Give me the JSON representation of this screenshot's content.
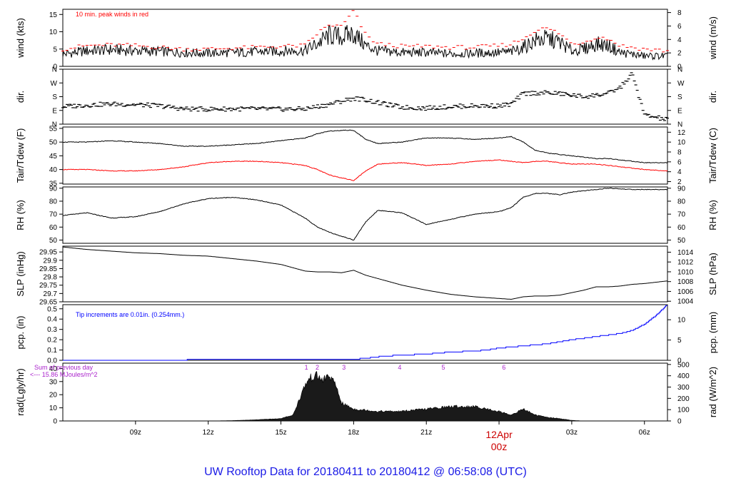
{
  "title": "UW Rooftop Data for 20180411  to  20180412 @ 06:58:08  (UTC)",
  "colors": {
    "black": "#000000",
    "red": "#ff0000",
    "blue": "#0000ff",
    "purple": "#aa22cc",
    "darkred": "#cc0000",
    "title": "#1a1ae6"
  },
  "time_axis": {
    "unit": "hours since 2018-04-11 06:00 UTC",
    "range": [
      0,
      24.95
    ],
    "ticks": [
      {
        "t": 3,
        "label": "09z"
      },
      {
        "t": 6,
        "label": "12z"
      },
      {
        "t": 9,
        "label": "15z"
      },
      {
        "t": 12,
        "label": "18z"
      },
      {
        "t": 15,
        "label": "21z"
      },
      {
        "t": 18,
        "label": "12Apr"
      },
      {
        "t": 21,
        "label": "03z"
      },
      {
        "t": 24,
        "label": "06z"
      }
    ],
    "midnight_label": "00z"
  },
  "chart_data": [
    {
      "type": "line",
      "panel": "wind",
      "ylabel_left": "wind (kts)",
      "ylabel_right": "wind (m/s)",
      "ylim": [
        0,
        16.5
      ],
      "yticks_left": [
        0,
        5,
        10,
        15
      ],
      "yticks_right": [
        {
          "v": 0,
          "label": "0"
        },
        {
          "v": 3.888,
          "label": "2"
        },
        {
          "v": 7.776,
          "label": "4"
        },
        {
          "v": 11.664,
          "label": "6"
        },
        {
          "v": 15.552,
          "label": "8"
        }
      ],
      "annotation": "10 min. peak winds in red",
      "series": [
        {
          "role": "mean",
          "color": "#000000",
          "x": [
            0,
            1,
            2,
            3,
            4,
            5,
            6,
            7,
            8,
            9,
            10,
            10.5,
            11,
            11.5,
            12,
            12.5,
            13,
            14,
            15,
            16,
            17,
            18,
            18.5,
            19,
            19.5,
            20,
            20.5,
            21,
            21.5,
            22,
            22.5,
            23,
            23.5,
            24,
            24.9
          ],
          "y": [
            3.5,
            4.5,
            4.8,
            4.5,
            4.3,
            4,
            3.8,
            4,
            4.2,
            4.4,
            4.6,
            6.5,
            9,
            8.5,
            9.5,
            6,
            4.5,
            4,
            4,
            3.6,
            3.8,
            4,
            4.2,
            5.5,
            7.5,
            8,
            7,
            4.5,
            5,
            6.5,
            6,
            4,
            3.5,
            3,
            3
          ]
        },
        {
          "role": "peak",
          "color": "#ff0000",
          "x": [
            0,
            1,
            2,
            3,
            4,
            5,
            6,
            7,
            8,
            9,
            10,
            10.5,
            11,
            11.5,
            12,
            12.5,
            13,
            14,
            15,
            16,
            17,
            18,
            18.5,
            19,
            19.5,
            20,
            20.5,
            21,
            21.5,
            22,
            22.5,
            23,
            23.5,
            24,
            24.9
          ],
          "y": [
            5,
            6,
            6.2,
            6,
            5.5,
            5,
            5,
            5.3,
            5.5,
            5.8,
            6,
            9.5,
            12,
            11.5,
            16,
            9,
            6.5,
            5.8,
            5.8,
            5.5,
            5.5,
            6,
            6.5,
            8,
            10.5,
            11,
            9.5,
            6.5,
            7,
            8.5,
            8,
            6,
            5.5,
            5,
            4.5
          ]
        }
      ]
    },
    {
      "type": "scatter",
      "panel": "dir",
      "ylabel_left": "dir.",
      "ylabel_right": "dir.",
      "ylim": [
        0,
        360
      ],
      "yticks_left": [
        {
          "v": 0,
          "label": "N"
        },
        {
          "v": 90,
          "label": "E"
        },
        {
          "v": 180,
          "label": "S"
        },
        {
          "v": 270,
          "label": "W"
        },
        {
          "v": 360,
          "label": "N"
        }
      ],
      "yticks_right": [
        {
          "v": 0,
          "label": "N"
        },
        {
          "v": 90,
          "label": "E"
        },
        {
          "v": 180,
          "label": "S"
        },
        {
          "v": 270,
          "label": "W"
        },
        {
          "v": 360,
          "label": "N"
        }
      ],
      "series": [
        {
          "color": "#000000",
          "x": [
            0,
            1,
            2,
            3,
            4,
            5,
            6,
            7,
            8,
            9,
            10,
            10.5,
            11,
            11.5,
            12,
            12.5,
            13,
            14,
            15,
            16,
            17,
            18,
            18.5,
            19,
            19.5,
            20,
            20.5,
            21,
            21.5,
            22,
            22.5,
            23,
            23.5,
            24,
            24.9
          ],
          "y": [
            115,
            125,
            132,
            128,
            120,
            100,
            98,
            100,
            100,
            98,
            100,
            115,
            130,
            150,
            170,
            160,
            140,
            110,
            105,
            115,
            120,
            120,
            130,
            200,
            205,
            205,
            200,
            190,
            180,
            190,
            200,
            240,
            330,
            60,
            30
          ]
        }
      ]
    },
    {
      "type": "line",
      "panel": "temperature",
      "ylabel_left": "Tair/Tdew (F)",
      "ylabel_right": "Tair/Tdew (C)",
      "ylim": [
        34.7,
        55.5
      ],
      "yticks_left": [
        35,
        40,
        45,
        50,
        55
      ],
      "yticks_right": [
        {
          "v": 35.6,
          "label": "2"
        },
        {
          "v": 39.2,
          "label": "4"
        },
        {
          "v": 42.8,
          "label": "6"
        },
        {
          "v": 46.4,
          "label": "8"
        },
        {
          "v": 50,
          "label": "10"
        },
        {
          "v": 53.6,
          "label": "12"
        }
      ],
      "series": [
        {
          "role": "Tair",
          "color": "#000000",
          "x": [
            0,
            1,
            2,
            3,
            4,
            5,
            6,
            7,
            8,
            9,
            10,
            10.5,
            11,
            11.5,
            12,
            12.5,
            13,
            14,
            15,
            16,
            17,
            18,
            18.5,
            19,
            19.5,
            20,
            20.5,
            21,
            21.5,
            22,
            22.5,
            23,
            23.5,
            24,
            24.9
          ],
          "y": [
            50,
            50,
            50.5,
            50,
            49.5,
            48.5,
            48.5,
            49,
            49.5,
            50.5,
            51.5,
            53,
            54,
            54.3,
            54.3,
            51,
            49.5,
            50,
            51.5,
            51.5,
            51,
            51.5,
            52,
            50,
            47,
            46,
            45.5,
            45,
            44.5,
            44,
            44,
            43.5,
            43,
            42.5,
            42.5
          ]
        },
        {
          "role": "Tdew",
          "color": "#ff0000",
          "x": [
            0,
            1,
            2,
            3,
            4,
            5,
            6,
            7,
            8,
            9,
            10,
            10.5,
            11,
            11.5,
            12,
            12.5,
            13,
            14,
            15,
            16,
            17,
            18,
            18.5,
            19,
            19.5,
            20,
            20.5,
            21,
            21.5,
            22,
            22.5,
            23,
            23.5,
            24,
            24.9
          ],
          "y": [
            40,
            40,
            39.5,
            39.5,
            40,
            41,
            42.5,
            43,
            43,
            42.5,
            41.5,
            40,
            38,
            37,
            36,
            39.5,
            42,
            42.5,
            41.5,
            42,
            43,
            43.5,
            43,
            42.5,
            43,
            43,
            42.5,
            42,
            42,
            42,
            41.5,
            41,
            40.5,
            40,
            39.5
          ]
        }
      ]
    },
    {
      "type": "line",
      "panel": "rh",
      "ylabel_left": "RH (%)",
      "ylabel_right": "RH (%)",
      "ylim": [
        47.5,
        91
      ],
      "yticks_left": [
        50,
        60,
        70,
        80,
        90
      ],
      "yticks_right": [
        {
          "v": 50,
          "label": "50"
        },
        {
          "v": 60,
          "label": "60"
        },
        {
          "v": 70,
          "label": "70"
        },
        {
          "v": 80,
          "label": "80"
        },
        {
          "v": 90,
          "label": "90"
        }
      ],
      "series": [
        {
          "color": "#000000",
          "x": [
            0,
            1,
            2,
            3,
            4,
            5,
            6,
            7,
            8,
            9,
            10,
            10.5,
            11,
            11.5,
            12,
            12.5,
            13,
            14,
            15,
            16,
            17,
            18,
            18.5,
            19,
            19.5,
            20,
            20.5,
            21,
            21.5,
            22,
            22.5,
            23,
            23.5,
            24,
            24.9
          ],
          "y": [
            69,
            71,
            67,
            68,
            72,
            78,
            82,
            83,
            81,
            77,
            67,
            60,
            56,
            53,
            50,
            64,
            73,
            71,
            62,
            66,
            70,
            72,
            75,
            83,
            86,
            86,
            85,
            87,
            88,
            89,
            90,
            89.5,
            89,
            89,
            89
          ]
        }
      ]
    },
    {
      "type": "line",
      "panel": "slp",
      "ylabel_left": "SLP (inHg)",
      "ylabel_right": "SLP (hPa)",
      "ylim": [
        29.65,
        29.985
      ],
      "yticks_left": [
        29.65,
        29.7,
        29.75,
        29.8,
        29.85,
        29.9,
        29.95
      ],
      "yticks_right": [
        {
          "v": 29.6534,
          "label": "1004"
        },
        {
          "v": 29.7125,
          "label": "1006"
        },
        {
          "v": 29.7716,
          "label": "1008"
        },
        {
          "v": 29.8306,
          "label": "1010"
        },
        {
          "v": 29.8897,
          "label": "1012"
        },
        {
          "v": 29.9487,
          "label": "1014"
        }
      ],
      "series": [
        {
          "color": "#000000",
          "x": [
            0,
            1,
            2,
            3,
            4,
            5,
            6,
            7,
            8,
            9,
            10,
            10.5,
            11,
            11.5,
            12,
            12.5,
            13,
            14,
            15,
            16,
            17,
            18,
            18.5,
            19,
            19.5,
            20,
            20.5,
            21,
            21.5,
            22,
            22.5,
            23,
            23.5,
            24,
            24.9
          ],
          "y": [
            29.98,
            29.965,
            29.955,
            29.945,
            29.94,
            29.93,
            29.925,
            29.91,
            29.895,
            29.875,
            29.835,
            29.83,
            29.83,
            29.825,
            29.84,
            29.81,
            29.79,
            29.75,
            29.72,
            29.695,
            29.68,
            29.67,
            29.665,
            29.68,
            29.685,
            29.685,
            29.69,
            29.705,
            29.72,
            29.74,
            29.74,
            29.745,
            29.755,
            29.76,
            29.775
          ]
        }
      ]
    },
    {
      "type": "line",
      "panel": "precip",
      "ylabel_left": "pcp. (in)",
      "ylabel_right": "pcp. (mm)",
      "ylim": [
        0,
        0.54
      ],
      "yticks_left": [
        {
          "v": 0,
          "label": "0.0"
        },
        {
          "v": 0.1,
          "label": "0.1"
        },
        {
          "v": 0.2,
          "label": "0.2"
        },
        {
          "v": 0.3,
          "label": "0.3"
        },
        {
          "v": 0.4,
          "label": "0.4"
        },
        {
          "v": 0.5,
          "label": "0.5"
        }
      ],
      "yticks_right": [
        {
          "v": 0,
          "label": "0"
        },
        {
          "v": 0.1969,
          "label": "5"
        },
        {
          "v": 0.3937,
          "label": "10"
        }
      ],
      "annotation": "Tip increments are 0.01in. (0.254mm.)",
      "series": [
        {
          "color": "#0000ff",
          "x": [
            0,
            4,
            4.2,
            6,
            11.4,
            11.6,
            12,
            12.5,
            13.2,
            14,
            15,
            16,
            17,
            17.5,
            18,
            19,
            20,
            21,
            22,
            23,
            23.5,
            24,
            24.5,
            24.9
          ],
          "y": [
            0,
            0,
            0,
            0.01,
            0.01,
            0.01,
            0.01,
            0.02,
            0.04,
            0.05,
            0.06,
            0.08,
            0.09,
            0.1,
            0.12,
            0.14,
            0.16,
            0.2,
            0.23,
            0.26,
            0.29,
            0.35,
            0.44,
            0.53
          ]
        }
      ]
    },
    {
      "type": "area",
      "panel": "radiation",
      "ylabel_left": "rad(Lgly/hr)",
      "ylabel_right": "rad (W/m^2)",
      "ylim": [
        0,
        44
      ],
      "yticks_left": [
        0,
        10,
        20,
        30,
        40
      ],
      "yticks_right": [
        {
          "v": 0,
          "label": "0"
        },
        {
          "v": 8.6,
          "label": "100"
        },
        {
          "v": 17.2,
          "label": "200"
        },
        {
          "v": 25.8,
          "label": "300"
        },
        {
          "v": 34.4,
          "label": "400"
        },
        {
          "v": 43.0,
          "label": "500"
        }
      ],
      "annotation_lines": [
        "Sum of previous day",
        "<--- 15.86 MJoules/m^2"
      ],
      "markers": [
        {
          "t": 10.05,
          "label": "1"
        },
        {
          "t": 10.5,
          "label": "2"
        },
        {
          "t": 11.6,
          "label": "3"
        },
        {
          "t": 13.9,
          "label": "4"
        },
        {
          "t": 15.7,
          "label": "5"
        },
        {
          "t": 18.2,
          "label": "6"
        }
      ],
      "series": [
        {
          "color": "#000000",
          "x": [
            0,
            6,
            7,
            8,
            9,
            9.5,
            10,
            10.2,
            10.5,
            10.7,
            11,
            11.3,
            11.5,
            12,
            12.5,
            13,
            14,
            15,
            16,
            17,
            18,
            18.5,
            19,
            19.5,
            20,
            20.5,
            21,
            21.5,
            24.9
          ],
          "y": [
            0,
            0,
            0.3,
            1,
            2,
            5,
            30,
            36,
            38,
            34,
            38,
            28,
            15,
            10,
            9,
            8,
            8,
            10,
            12,
            12,
            8,
            5,
            10,
            5,
            3,
            2,
            0.5,
            0,
            0
          ]
        }
      ]
    }
  ]
}
